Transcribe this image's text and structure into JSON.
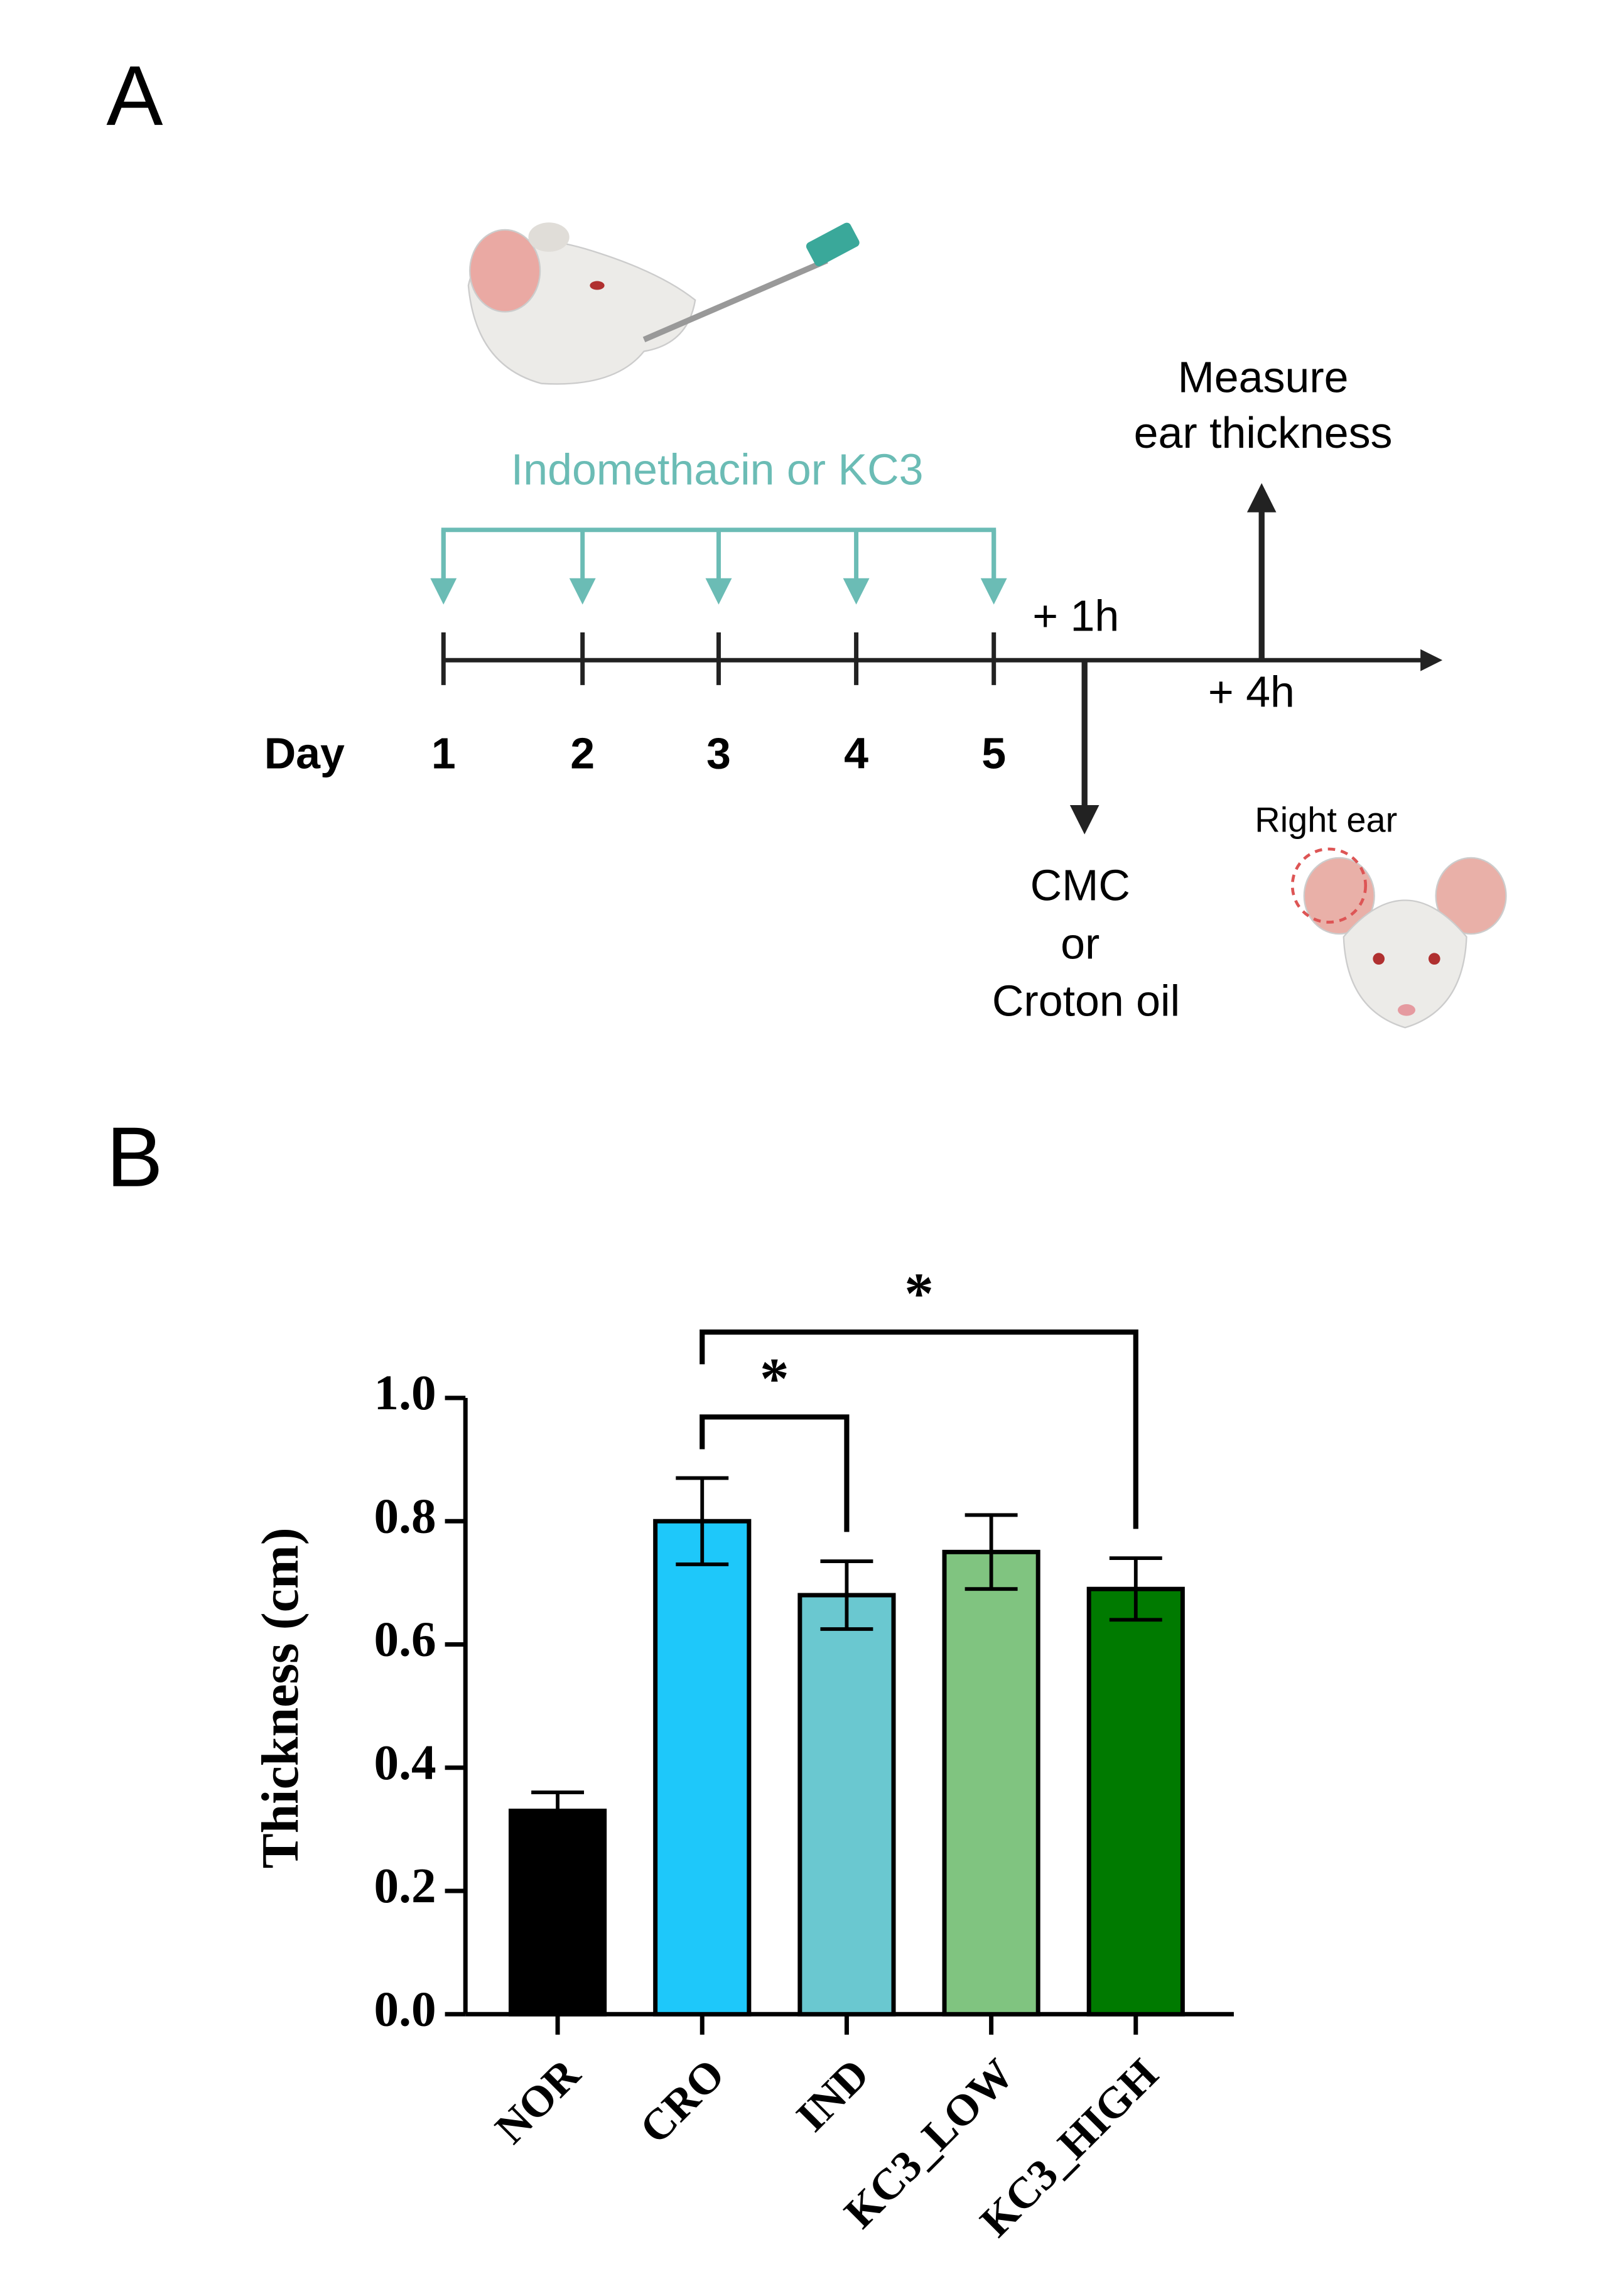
{
  "panel_a": {
    "label": "A",
    "treatment": "Indomethacin or KC3",
    "measure": [
      "Measure",
      "ear thickness"
    ],
    "after_1h": "+ 1h",
    "after_4h": "+ 4h",
    "day_label": "Day",
    "days": [
      "1",
      "2",
      "3",
      "4",
      "5"
    ],
    "challenge": [
      "CMC",
      "or",
      "Croton oil"
    ],
    "ear_label": "Right ear"
  },
  "panel_b_label": "B",
  "chart_data": {
    "type": "bar",
    "y_label": "Thickness (cm)",
    "categories": [
      "NOR",
      "CRO",
      "IND",
      "KC3_LOW",
      "KC3_HIGH"
    ],
    "values": [
      0.33,
      0.8,
      0.68,
      0.75,
      0.69
    ],
    "errors": [
      0.03,
      0.07,
      0.055,
      0.06,
      0.05
    ],
    "colors": [
      "#000000",
      "#1ec8fa",
      "#6ac8d0",
      "#80c480",
      "#007a00"
    ],
    "ylim": [
      0,
      1
    ],
    "yticks": [
      {
        "value": 0,
        "label": "0.0"
      },
      0.2,
      0.4,
      0.6,
      0.8,
      {
        "value": 1,
        "label": "1.0"
      }
    ],
    "significance": [
      {
        "pair": [
          "CRO",
          "IND"
        ],
        "label": "*"
      },
      {
        "pair": [
          "CRO",
          "KC3_HIGH"
        ],
        "label": "*"
      }
    ]
  }
}
